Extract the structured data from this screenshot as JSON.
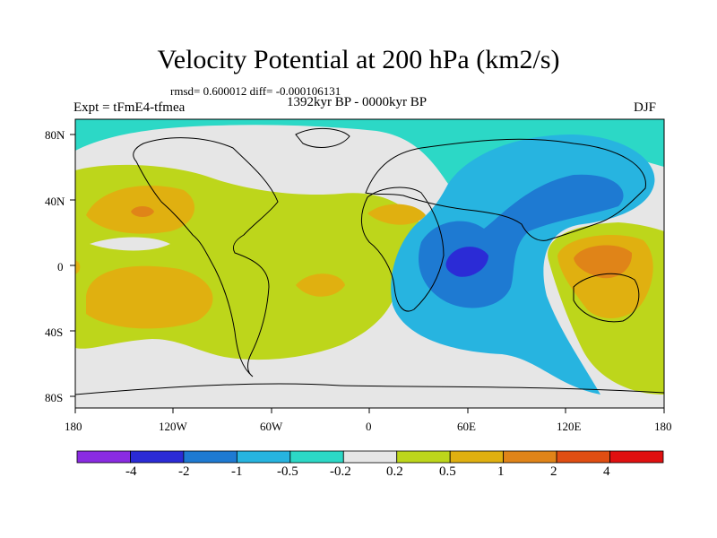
{
  "figure": {
    "title": "Velocity Potential at 200 hPa (km2/s)",
    "stats": "rmsd= 0.600012 diff= -0.000106131",
    "period": "1392kyr BP - 0000kyr BP",
    "experiment": "Expt = tFmE4-tfmea",
    "season": "DJF"
  },
  "axes": {
    "lat_labels": [
      "80N",
      "40N",
      "0",
      "40S",
      "80S"
    ],
    "lon_labels": [
      "180",
      "120W",
      "60W",
      "0",
      "60E",
      "120E",
      "180"
    ]
  },
  "colorbar": {
    "labels": [
      "-4",
      "-2",
      "-1",
      "-0.5",
      "-0.2",
      "0.2",
      "0.5",
      "1",
      "2",
      "4"
    ],
    "colors": [
      "#8a2be2",
      "#2b2bd6",
      "#1e7ad2",
      "#27b4e0",
      "#2cd8c6",
      "#e6e6e6",
      "#bdd61b",
      "#e0b010",
      "#e08418",
      "#e04e12",
      "#e01010"
    ]
  }
}
